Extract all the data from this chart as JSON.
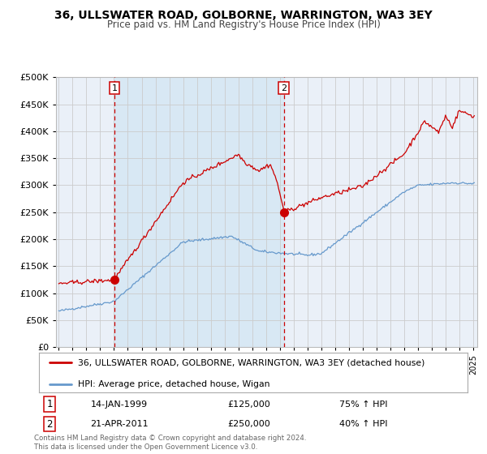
{
  "title": "36, ULLSWATER ROAD, GOLBORNE, WARRINGTON, WA3 3EY",
  "subtitle": "Price paid vs. HM Land Registry's House Price Index (HPI)",
  "legend_line1": "36, ULLSWATER ROAD, GOLBORNE, WARRINGTON, WA3 3EY (detached house)",
  "legend_line2": "HPI: Average price, detached house, Wigan",
  "sale1_date": "14-JAN-1999",
  "sale1_price": 125000,
  "sale1_hpi": "75% ↑ HPI",
  "sale2_date": "21-APR-2011",
  "sale2_price": 250000,
  "sale2_hpi": "40% ↑ HPI",
  "footer": "Contains HM Land Registry data © Crown copyright and database right 2024.\nThis data is licensed under the Open Government Licence v3.0.",
  "red_line_color": "#cc0000",
  "blue_line_color": "#6699cc",
  "background_color": "#ffffff",
  "plot_bg_color": "#eaf0f8",
  "shaded_region_color": "#d8e8f4",
  "grid_color": "#cccccc",
  "dashed_line_color": "#cc0000",
  "ylim": [
    0,
    500000
  ],
  "yticks": [
    0,
    50000,
    100000,
    150000,
    200000,
    250000,
    300000,
    350000,
    400000,
    450000,
    500000
  ],
  "sale1_x": 1999.04,
  "sale2_x": 2011.3,
  "xmin": 1995,
  "xmax": 2025
}
